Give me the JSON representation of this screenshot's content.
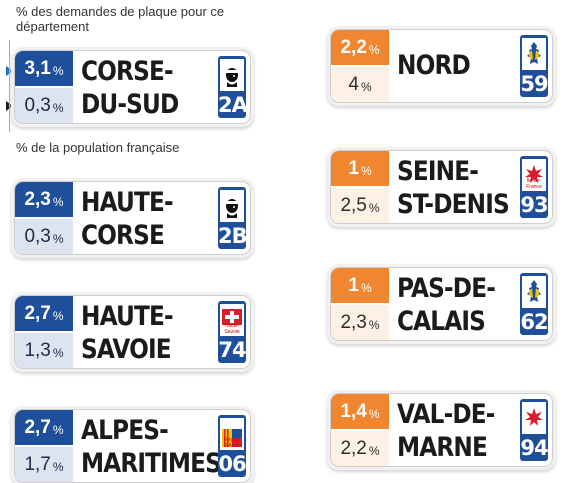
{
  "legend": {
    "demand_note": "% des demandes de plaque pour ce département",
    "population_note": "% de la population française"
  },
  "plates": [
    {
      "id": "corse-du-sud",
      "name": "CORSE-\nDU-SUD",
      "demand": "3,1",
      "population": "0,3",
      "code": "2A",
      "color": "blue",
      "logo": "corsica-moor-icon"
    },
    {
      "id": "haute-corse",
      "name": "HAUTE-\nCORSE",
      "demand": "2,3",
      "population": "0,3",
      "code": "2B",
      "color": "blue",
      "logo": "corsica-moor-icon"
    },
    {
      "id": "haute-savoie",
      "name": "HAUTE-\nSAVOIE",
      "demand": "2,7",
      "population": "1,3",
      "code": "74",
      "color": "blue",
      "logo": "savoie-cross-icon",
      "logo_text": "Haute-Savoie"
    },
    {
      "id": "alpes-maritimes",
      "name": "ALPES-\nMARITIMES",
      "demand": "2,7",
      "population": "1,7",
      "code": "06",
      "color": "blue",
      "logo": "paca-region-icon",
      "logo_text": "Région PACA"
    },
    {
      "id": "nord",
      "name": "NORD",
      "demand": "2,2",
      "population": "4",
      "code": "59",
      "color": "orange",
      "logo": "hauts-de-france-icon"
    },
    {
      "id": "seine-st-denis",
      "name": "SEINE-\nST-DENIS",
      "demand": "1",
      "population": "2,5",
      "code": "93",
      "color": "orange",
      "logo": "ile-de-france-icon",
      "logo_text": "Île-de-France"
    },
    {
      "id": "pas-de-calais",
      "name": "PAS-DE-\nCALAIS",
      "demand": "1",
      "population": "2,3",
      "code": "62",
      "color": "orange",
      "logo": "hauts-de-france-icon"
    },
    {
      "id": "val-de-marne",
      "name": "VAL-DE-\nMARNE",
      "demand": "1,4",
      "population": "2,2",
      "code": "94",
      "color": "orange",
      "logo": "ile-de-france-icon"
    }
  ],
  "percent_sign": "%"
}
